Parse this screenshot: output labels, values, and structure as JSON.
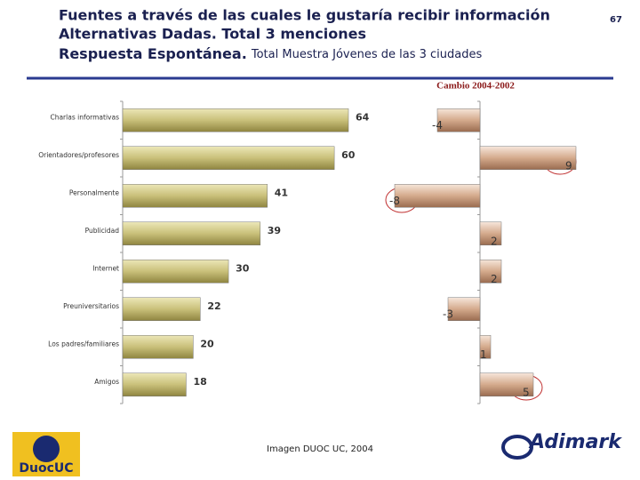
{
  "header": {
    "lines": [
      "Fuentes a través de las cuales le gustaría recibir información",
      "Alternativas Dadas. Total 3 menciones"
    ],
    "bold_part": "Respuesta Espontánea.",
    "normal_part": "Total Muestra Jóvenes de las 3 ciudades",
    "page_number": "67"
  },
  "footer": {
    "caption": "Imagen DUOC UC, 2004",
    "logo_left": "DuocUC",
    "logo_right": "Adimark"
  },
  "chart_data": [
    {
      "type": "bar",
      "orientation": "horizontal",
      "color": "#b8ae5e",
      "categories": [
        "Charlas informativas",
        "Orientadores/profesores",
        "Personalmente",
        "Publicidad",
        "Internet",
        "Preuniversitarios",
        "Los padres/familiares",
        "Amigos"
      ],
      "values": [
        64,
        60,
        41,
        39,
        30,
        22,
        20,
        18
      ]
    },
    {
      "type": "bar",
      "orientation": "horizontal",
      "color": "#c09070",
      "title": "Cambio 2004-2002",
      "values": [
        -4,
        9,
        -8,
        2,
        2,
        -3,
        1,
        5
      ]
    }
  ]
}
